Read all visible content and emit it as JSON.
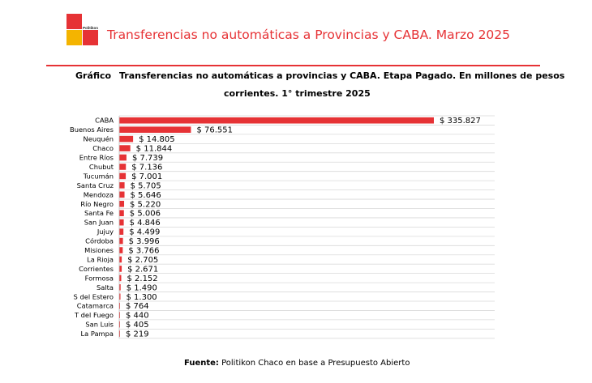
{
  "header": {
    "brand": "Politikon",
    "title": "Transferencias no automáticas a Provincias y CABA. Marzo 2025",
    "accent_color": "#e63235",
    "logo_yellow": "#f4b400"
  },
  "chart_label": "Gráfico",
  "chart_title_line1": "Transferencias no automáticas a provincias y CABA. Etapa Pagado. En millones de pesos",
  "chart_title_line2": "corrientes. 1° trimestre 2025",
  "footer": {
    "label": "Fuente:",
    "text": " Politikon Chaco en base a Presupuesto Abierto"
  },
  "chart_data": {
    "type": "bar",
    "orientation": "horizontal",
    "categories": [
      "CABA",
      "Buenos Aires",
      "Neuquén",
      "Chaco",
      "Entre Ríos",
      "Chubut",
      "Tucumán",
      "Santa Cruz",
      "Mendoza",
      "Río Negro",
      "Santa Fe",
      "San Juan",
      "Jujuy",
      "Córdoba",
      "Misiones",
      "La Rioja",
      "Corrientes",
      "Formosa",
      "Salta",
      "S del Estero",
      "Catamarca",
      "T del Fuego",
      "San Luis",
      "La Pampa"
    ],
    "values": [
      335827,
      76551,
      14805,
      11844,
      7739,
      7136,
      7001,
      5705,
      5646,
      5220,
      5006,
      4846,
      4499,
      3996,
      3766,
      2705,
      2671,
      2152,
      1490,
      1300,
      764,
      440,
      405,
      219
    ],
    "data_labels": [
      "$ 335.827",
      "$ 76.551",
      "$ 14.805",
      "$ 11.844",
      "$ 7.739",
      "$ 7.136",
      "$ 7.001",
      "$ 5.705",
      "$ 5.646",
      "$ 5.220",
      "$ 5.006",
      "$ 4.846",
      "$ 4.499",
      "$ 3.996",
      "$ 3.766",
      "$ 2.705",
      "$ 2.671",
      "$ 2.152",
      "$ 1.490",
      "$ 1.300",
      "$ 764",
      "$ 440",
      "$ 405",
      "$ 219"
    ],
    "bar_color": "#e63235",
    "xlim": [
      0,
      335827
    ],
    "grid": true
  }
}
